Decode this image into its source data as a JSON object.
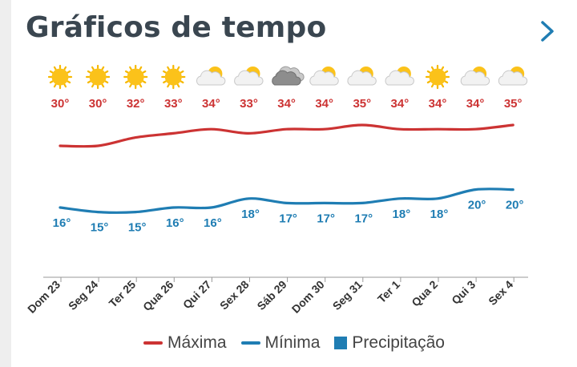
{
  "header": {
    "title": "Gráficos de tempo",
    "next_icon": "chevron-right-icon"
  },
  "colors": {
    "max": "#cc3333",
    "min": "#1f7db3",
    "precip": "#1f7db3",
    "axis": "#999999",
    "title": "#3a4650"
  },
  "chart_data": {
    "type": "line",
    "categories": [
      "Dom 23",
      "Seg 24",
      "Ter 25",
      "Qua 26",
      "Qui 27",
      "Sex 28",
      "Sáb 29",
      "Dom 30",
      "Seg 31",
      "Ter 1",
      "Qua 2",
      "Qui 3",
      "Sex 4"
    ],
    "icons": [
      "sun-icon",
      "sun-icon",
      "sun-icon",
      "sun-icon",
      "partly-cloudy-icon",
      "partly-cloudy-icon",
      "cloud-icon",
      "partly-cloudy-icon",
      "partly-cloudy-icon",
      "partly-cloudy-icon",
      "sun-icon",
      "partly-cloudy-icon",
      "partly-cloudy-icon"
    ],
    "series": [
      {
        "name": "Máxima",
        "values": [
          30,
          30,
          32,
          33,
          34,
          33,
          34,
          34,
          35,
          34,
          34,
          34,
          35
        ],
        "labels": [
          "30°",
          "30°",
          "32°",
          "33°",
          "34°",
          "33°",
          "34°",
          "34°",
          "35°",
          "34°",
          "34°",
          "34°",
          "35°"
        ]
      },
      {
        "name": "Mínima",
        "values": [
          16,
          15,
          15,
          16,
          16,
          18,
          17,
          17,
          17,
          18,
          18,
          20,
          20
        ],
        "labels": [
          "16°",
          "15°",
          "15°",
          "16°",
          "16°",
          "18°",
          "17°",
          "17°",
          "17°",
          "18°",
          "18°",
          "20°",
          "20°"
        ]
      }
    ],
    "legend": [
      "Máxima",
      "Mínima",
      "Precipitação"
    ]
  }
}
